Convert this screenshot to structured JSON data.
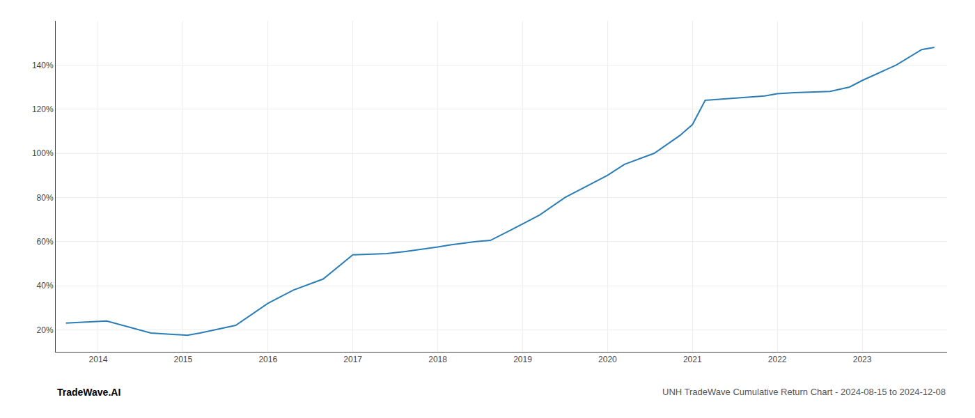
{
  "chart_data": {
    "type": "line",
    "title": "UNH TradeWave Cumulative Return Chart - 2024-08-15 to 2024-12-08",
    "annotations": [
      "TradeWave.AI"
    ],
    "color": "#2a7db5",
    "x": [
      2013.62,
      2014.1,
      2014.62,
      2015.05,
      2015.2,
      2015.62,
      2016.0,
      2016.3,
      2016.65,
      2017.0,
      2017.4,
      2017.62,
      2018.0,
      2018.15,
      2018.45,
      2018.62,
      2018.85,
      2019.2,
      2019.5,
      2019.8,
      2020.0,
      2020.2,
      2020.55,
      2020.85,
      2021.0,
      2021.15,
      2021.5,
      2021.85,
      2022.0,
      2022.2,
      2022.62,
      2022.85,
      2023.0,
      2023.4,
      2023.7,
      2023.85
    ],
    "values": [
      23,
      24,
      18.5,
      17.5,
      18.5,
      22,
      32,
      38,
      43,
      54,
      54.5,
      55.5,
      57.5,
      58.5,
      60,
      60.5,
      65,
      72,
      80,
      86,
      90,
      95,
      100,
      108,
      113,
      124,
      125,
      126,
      127,
      127.5,
      128,
      130,
      133,
      140,
      147,
      148
    ],
    "xlim": [
      2013.5,
      2024.0
    ],
    "xticks": [
      2014,
      2015,
      2016,
      2017,
      2018,
      2019,
      2020,
      2021,
      2022,
      2023
    ],
    "ylim": [
      10,
      160
    ],
    "yticks": [
      {
        "value": 20,
        "label": "20%"
      },
      {
        "value": 40,
        "label": "40%"
      },
      {
        "value": 60,
        "label": "60%"
      },
      {
        "value": 80,
        "label": "80%"
      },
      {
        "value": 100,
        "label": "100%"
      },
      {
        "value": 120,
        "label": "120%"
      },
      {
        "value": 140,
        "label": "140%"
      }
    ],
    "grid": true
  }
}
